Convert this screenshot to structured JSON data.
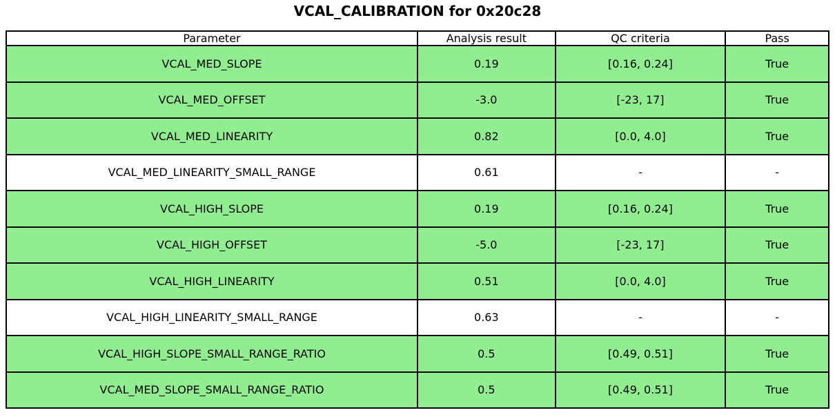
{
  "chart_data": {
    "type": "table",
    "title": "VCAL_CALIBRATION for 0x20c28",
    "columns": [
      "Parameter",
      "Analysis result",
      "QC criteria",
      "Pass"
    ],
    "rows": [
      {
        "parameter": "VCAL_MED_SLOPE",
        "result": "0.19",
        "criteria": "[0.16, 0.24]",
        "pass": "True",
        "highlight": true
      },
      {
        "parameter": "VCAL_MED_OFFSET",
        "result": "-3.0",
        "criteria": "[-23, 17]",
        "pass": "True",
        "highlight": true
      },
      {
        "parameter": "VCAL_MED_LINEARITY",
        "result": "0.82",
        "criteria": "[0.0, 4.0]",
        "pass": "True",
        "highlight": true
      },
      {
        "parameter": "VCAL_MED_LINEARITY_SMALL_RANGE",
        "result": "0.61",
        "criteria": "-",
        "pass": "-",
        "highlight": false
      },
      {
        "parameter": "VCAL_HIGH_SLOPE",
        "result": "0.19",
        "criteria": "[0.16, 0.24]",
        "pass": "True",
        "highlight": true
      },
      {
        "parameter": "VCAL_HIGH_OFFSET",
        "result": "-5.0",
        "criteria": "[-23, 17]",
        "pass": "True",
        "highlight": true
      },
      {
        "parameter": "VCAL_HIGH_LINEARITY",
        "result": "0.51",
        "criteria": "[0.0, 4.0]",
        "pass": "True",
        "highlight": true
      },
      {
        "parameter": "VCAL_HIGH_LINEARITY_SMALL_RANGE",
        "result": "0.63",
        "criteria": "-",
        "pass": "-",
        "highlight": false
      },
      {
        "parameter": "VCAL_HIGH_SLOPE_SMALL_RANGE_RATIO",
        "result": "0.5",
        "criteria": "[0.49, 0.51]",
        "pass": "True",
        "highlight": true
      },
      {
        "parameter": "VCAL_MED_SLOPE_SMALL_RANGE_RATIO",
        "result": "0.5",
        "criteria": "[0.49, 0.51]",
        "pass": "True",
        "highlight": true
      }
    ],
    "colors": {
      "pass_row_bg": "#90EE90",
      "neutral_row_bg": "#FFFFFF",
      "border": "#000000",
      "text": "#000000"
    },
    "layout": {
      "legend_position": "none",
      "grid": "cell-borders"
    }
  }
}
